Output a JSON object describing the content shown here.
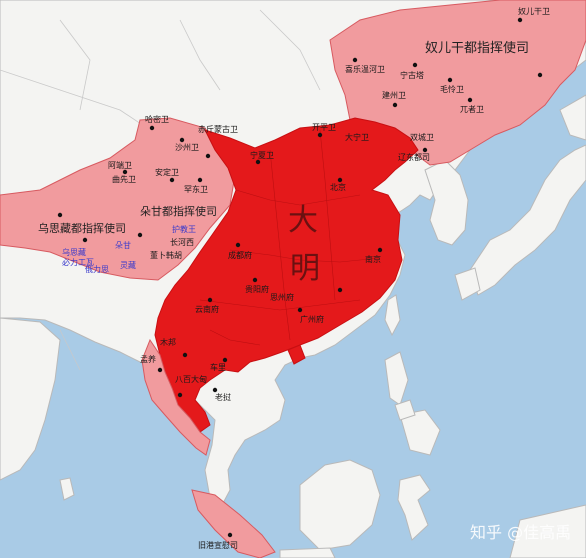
{
  "colors": {
    "sea": "#a9cbe6",
    "land": "#f4f4f2",
    "border": "#b9b9b9",
    "ming_core": "#e4191b",
    "ming_core_edge": "#c80f12",
    "frontier": "#f19b9e",
    "frontier_edge": "#d75a60"
  },
  "labels": {
    "ming_char_1": "大",
    "ming_char_2": "明",
    "nurgan": "奴儿干都指挥使司",
    "dosgam": "朵甘都指挥使司",
    "usizang": "乌思藏都指挥使司",
    "nurgan_wei": "奴儿干卫",
    "watermark": "知乎 @佳高禹"
  },
  "city_labels": [
    "哈密卫",
    "沙州卫",
    "赤斤蒙古卫",
    "安定卫",
    "阿端卫",
    "曲先卫",
    "罕东卫",
    "宁夏卫",
    "开平卫",
    "大宁卫",
    "辽东都司",
    "建州卫",
    "毛怜卫",
    "兀者卫",
    "喜乐温河卫",
    "宁古塔",
    "双城卫",
    "北京",
    "南京",
    "成都府",
    "云南府",
    "广州府",
    "贵阳府",
    "长河西",
    "董卜韩胡",
    "思州府",
    "老挝",
    "八百大甸",
    "车里",
    "木邦",
    "孟养",
    "旧港宣慰司"
  ],
  "blue_labels": [
    "乌思藏",
    "必力工瓦",
    "朵甘",
    "俄力思",
    "灵藏",
    "护教王"
  ],
  "icons": [
    "city-marker-icon"
  ]
}
